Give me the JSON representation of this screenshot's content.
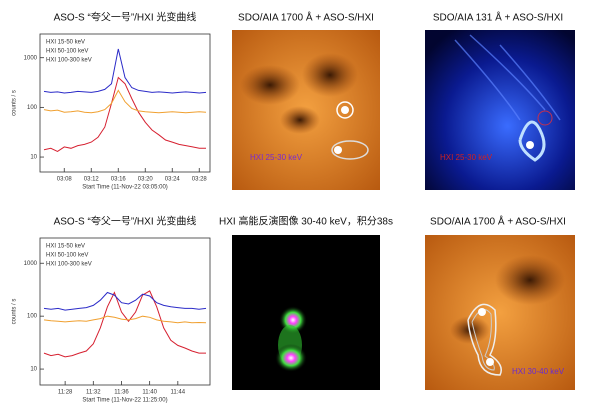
{
  "chart_data": [
    {
      "type": "line",
      "title": "ASO-S “夸父一号”/HXI 光变曲线",
      "y_label": "counts / s",
      "x_label": "Start Time (11-Nov-22 03:05:00)",
      "log_y": true,
      "ylim": [
        5,
        3000
      ],
      "yticks": [
        10,
        100,
        1000
      ],
      "x": [
        "03:05",
        "03:06",
        "03:07",
        "03:08",
        "03:09",
        "03:10",
        "03:11",
        "03:12",
        "03:13",
        "03:14",
        "03:15",
        "03:16",
        "03:17",
        "03:18",
        "03:19",
        "03:20",
        "03:21",
        "03:22",
        "03:23",
        "03:24",
        "03:25",
        "03:26",
        "03:27",
        "03:28",
        "03:29"
      ],
      "xticks": [
        "03:08",
        "03:12",
        "03:16",
        "03:20",
        "03:24",
        "03:28"
      ],
      "series": [
        {
          "name": "HXI 15-50 keV",
          "color": "#d62030",
          "values": [
            14,
            15,
            13,
            16,
            15,
            17,
            18,
            20,
            25,
            40,
            120,
            400,
            300,
            150,
            80,
            50,
            35,
            28,
            22,
            20,
            18,
            17,
            16,
            15,
            15
          ]
        },
        {
          "name": "HXI 50-100 keV",
          "color": "#2b2bc8",
          "values": [
            210,
            200,
            205,
            195,
            200,
            210,
            205,
            200,
            210,
            230,
            300,
            1500,
            400,
            250,
            220,
            210,
            200,
            205,
            200,
            195,
            200,
            205,
            200,
            195,
            200
          ]
        },
        {
          "name": "HXI 100-300 keV",
          "color": "#f0a030",
          "values": [
            90,
            85,
            88,
            80,
            82,
            85,
            80,
            78,
            82,
            90,
            120,
            220,
            130,
            95,
            85,
            82,
            80,
            78,
            80,
            82,
            80,
            78,
            80,
            82,
            80
          ]
        }
      ]
    },
    {
      "type": "line",
      "title": "ASO-S “夸父一号”/HXI 光变曲线",
      "y_label": "counts / s",
      "x_label": "Start Time (11-Nov-22 11:25:00)",
      "log_y": true,
      "ylim": [
        5,
        3000
      ],
      "yticks": [
        10,
        100,
        1000
      ],
      "x": [
        "11:25",
        "11:26",
        "11:27",
        "11:28",
        "11:29",
        "11:30",
        "11:31",
        "11:32",
        "11:33",
        "11:34",
        "11:35",
        "11:36",
        "11:37",
        "11:38",
        "11:39",
        "11:40",
        "11:41",
        "11:42",
        "11:43",
        "11:44",
        "11:45",
        "11:46",
        "11:47",
        "11:48"
      ],
      "xticks": [
        "11:28",
        "11:32",
        "11:36",
        "11:40",
        "11:44"
      ],
      "series": [
        {
          "name": "HXI 15-50 keV",
          "color": "#d62030",
          "values": [
            20,
            18,
            19,
            17,
            18,
            20,
            22,
            30,
            60,
            150,
            280,
            120,
            80,
            120,
            250,
            300,
            150,
            60,
            35,
            28,
            25,
            22,
            20,
            20
          ]
        },
        {
          "name": "HXI 50-100 keV",
          "color": "#2b2bc8",
          "values": [
            140,
            135,
            140,
            130,
            135,
            140,
            145,
            160,
            200,
            280,
            250,
            180,
            170,
            200,
            260,
            240,
            180,
            160,
            150,
            145,
            140,
            140,
            135,
            140
          ]
        },
        {
          "name": "HXI 100-300 keV",
          "color": "#f0a030",
          "values": [
            85,
            82,
            80,
            78,
            80,
            82,
            80,
            85,
            90,
            100,
            95,
            88,
            85,
            90,
            100,
            95,
            85,
            80,
            78,
            75,
            78,
            75,
            76,
            75
          ]
        }
      ]
    }
  ],
  "panels": [
    {
      "title": "SDO/AIA 1700 Å + ASO-S/HXI",
      "label": "HXI 25-30 keV"
    },
    {
      "title": "SDO/AIA 131 Å + ASO-S/HXI",
      "label": "HXI 25-30 keV"
    },
    {
      "title": "HXI 高能反演图像 30-40 keV，积分38s"
    },
    {
      "title": "SDO/AIA 1700 Å + ASO-S/HXI",
      "label": "HXI 30-40 keV"
    }
  ]
}
